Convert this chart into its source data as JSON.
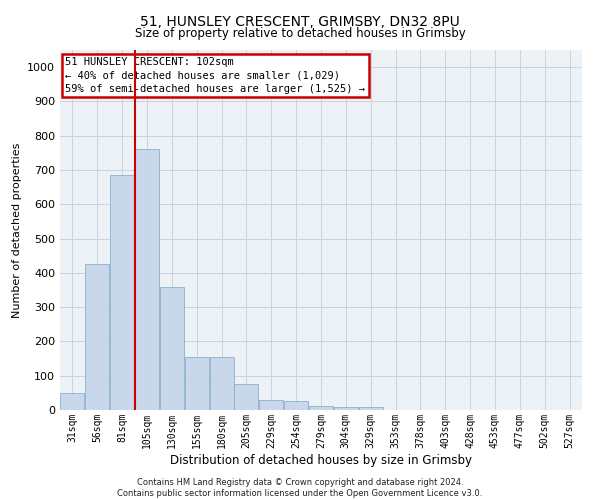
{
  "title_line1": "51, HUNSLEY CRESCENT, GRIMSBY, DN32 8PU",
  "title_line2": "Size of property relative to detached houses in Grimsby",
  "xlabel": "Distribution of detached houses by size in Grimsby",
  "ylabel": "Number of detached properties",
  "categories": [
    "31sqm",
    "56sqm",
    "81sqm",
    "105sqm",
    "130sqm",
    "155sqm",
    "180sqm",
    "205sqm",
    "229sqm",
    "254sqm",
    "279sqm",
    "304sqm",
    "329sqm",
    "353sqm",
    "378sqm",
    "403sqm",
    "428sqm",
    "453sqm",
    "477sqm",
    "502sqm",
    "527sqm"
  ],
  "values": [
    50,
    425,
    685,
    760,
    358,
    155,
    155,
    75,
    28,
    25,
    13,
    9,
    9,
    0,
    0,
    0,
    0,
    0,
    0,
    0,
    0
  ],
  "bar_color": "#c8d8ea",
  "bar_edgecolor": "#8ab0cc",
  "vline_color": "#cc0000",
  "annotation_text": "51 HUNSLEY CRESCENT: 102sqm\n← 40% of detached houses are smaller (1,029)\n59% of semi-detached houses are larger (1,525) →",
  "annotation_box_color": "#cc0000",
  "annotation_bg": "white",
  "ylim": [
    0,
    1050
  ],
  "yticks": [
    0,
    100,
    200,
    300,
    400,
    500,
    600,
    700,
    800,
    900,
    1000
  ],
  "grid_color": "#c8d4e0",
  "bg_color": "#edf2f7",
  "footer_line1": "Contains HM Land Registry data © Crown copyright and database right 2024.",
  "footer_line2": "Contains public sector information licensed under the Open Government Licence v3.0."
}
